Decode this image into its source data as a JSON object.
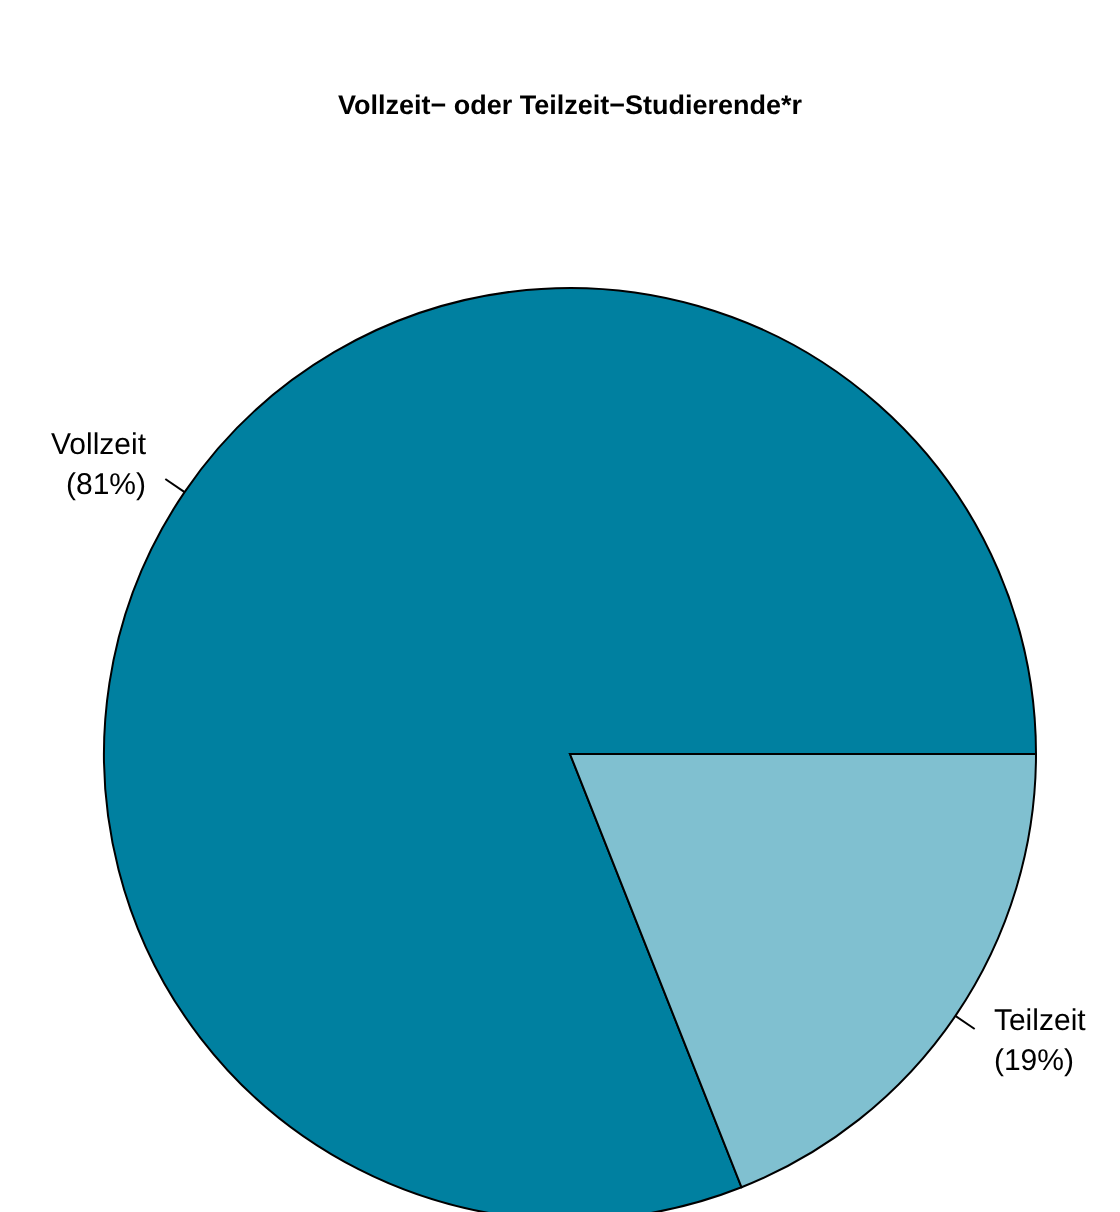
{
  "chart_data": {
    "type": "pie",
    "title": "Vollzeit− oder Teilzeit−Studierende*r",
    "categories": [
      "Vollzeit",
      "Teilzeit"
    ],
    "values": [
      81,
      19
    ],
    "colors": [
      "#0080a0",
      "#80c0d0"
    ],
    "value_labels": [
      "(81%)",
      "(19%)"
    ]
  }
}
